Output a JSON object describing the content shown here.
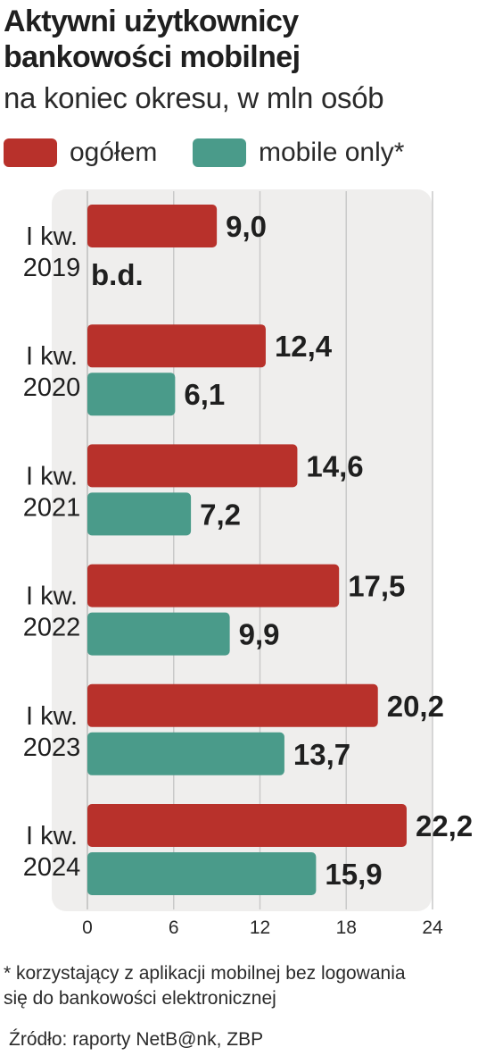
{
  "title_lines": [
    "Aktywni użytkownicy",
    "bankowości mobilnej"
  ],
  "subtitle": "na koniec okresu, w mln osób",
  "legend": [
    {
      "label": "ogółem",
      "color": "#b8312b"
    },
    {
      "label": "mobile only*",
      "color": "#4a9b8a"
    }
  ],
  "chart_data": {
    "type": "bar",
    "orientation": "horizontal",
    "categories": [
      [
        "I kw.",
        "2019"
      ],
      [
        "I kw.",
        "2020"
      ],
      [
        "I kw.",
        "2021"
      ],
      [
        "I kw.",
        "2022"
      ],
      [
        "I kw.",
        "2023"
      ],
      [
        "I kw.",
        "2024"
      ]
    ],
    "series": [
      {
        "name": "ogółem",
        "color": "#b8312b",
        "values": [
          9.0,
          12.4,
          14.6,
          17.5,
          20.2,
          22.2
        ],
        "labels": [
          "9,0",
          "12,4",
          "14,6",
          "17,5",
          "20,2",
          "22,2"
        ]
      },
      {
        "name": "mobile only*",
        "color": "#4a9b8a",
        "values": [
          null,
          6.1,
          7.2,
          9.9,
          13.7,
          15.9
        ],
        "labels": [
          "b.d.",
          "6,1",
          "7,2",
          "9,9",
          "13,7",
          "15,9"
        ]
      }
    ],
    "xlim": [
      0,
      24
    ],
    "xticks": [
      0,
      6,
      12,
      18,
      24
    ],
    "grid": true,
    "legend_position": "top-left"
  },
  "footnote_lines": [
    "* korzystający z aplikacji mobilnej bez logowania",
    "się do bankowości elektronicznej"
  ],
  "source": "Źródło: raporty NetB@nk, ZBP"
}
